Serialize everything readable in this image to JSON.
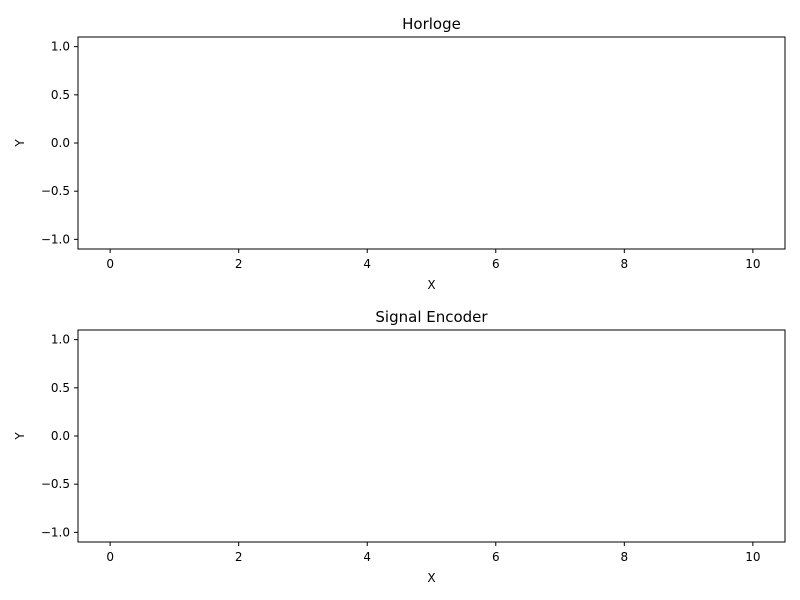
{
  "chart_data": [
    {
      "type": "line",
      "title": "Horloge",
      "xlabel": "X",
      "ylabel": "Y",
      "xlim": [
        -0.5,
        10.5
      ],
      "ylim": [
        -1.1,
        1.1
      ],
      "xticks": [
        0,
        2,
        4,
        6,
        8,
        10
      ],
      "yticks": [
        -1.0,
        -0.5,
        0.0,
        0.5,
        1.0
      ],
      "xtick_labels": [
        "0",
        "2",
        "4",
        "6",
        "8",
        "10"
      ],
      "ytick_labels": [
        "−1.0",
        "−0.5",
        "0.0",
        "0.5",
        "1.0"
      ],
      "series": [],
      "grid": false
    },
    {
      "type": "line",
      "title": "Signal Encoder",
      "xlabel": "X",
      "ylabel": "Y",
      "xlim": [
        -0.5,
        10.5
      ],
      "ylim": [
        -1.1,
        1.1
      ],
      "xticks": [
        0,
        2,
        4,
        6,
        8,
        10
      ],
      "yticks": [
        -1.0,
        -0.5,
        0.0,
        0.5,
        1.0
      ],
      "xtick_labels": [
        "0",
        "2",
        "4",
        "6",
        "8",
        "10"
      ],
      "ytick_labels": [
        "−1.0",
        "−0.5",
        "0.0",
        "0.5",
        "1.0"
      ],
      "series": [],
      "grid": false
    }
  ]
}
